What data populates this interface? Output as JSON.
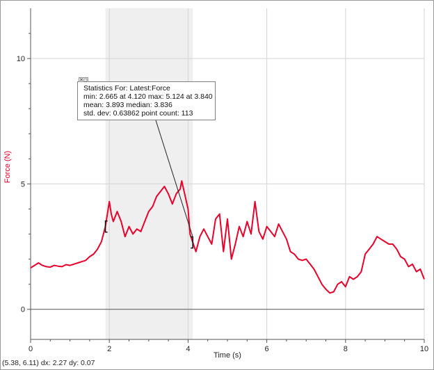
{
  "chart_data": {
    "type": "line",
    "xlabel": "Time (s)",
    "ylabel": "Force (N)",
    "xlim": [
      0,
      10
    ],
    "ylim": [
      -1.2,
      12
    ],
    "x_ticks": [
      0,
      2,
      4,
      6,
      8,
      10
    ],
    "y_ticks": [
      0,
      5,
      10
    ],
    "grid": true,
    "series_color": "#e8002a",
    "ylabel_color": "#e8002a",
    "selection": {
      "x_start": 1.9,
      "x_end": 4.12,
      "color": "#efefef"
    },
    "series": [
      {
        "x": [
          0.0,
          0.1,
          0.2,
          0.3,
          0.4,
          0.5,
          0.6,
          0.7,
          0.8,
          0.9,
          1.0,
          1.1,
          1.2,
          1.3,
          1.4,
          1.5,
          1.6,
          1.7,
          1.8,
          1.85,
          1.9,
          1.95,
          2.0,
          2.05,
          2.1,
          2.2,
          2.3,
          2.4,
          2.5,
          2.6,
          2.7,
          2.8,
          2.9,
          3.0,
          3.1,
          3.2,
          3.3,
          3.4,
          3.5,
          3.6,
          3.7,
          3.8,
          3.84,
          3.9,
          4.0,
          4.05,
          4.12,
          4.2,
          4.3,
          4.4,
          4.5,
          4.6,
          4.7,
          4.8,
          4.9,
          5.0,
          5.1,
          5.2,
          5.3,
          5.4,
          5.5,
          5.6,
          5.7,
          5.8,
          5.9,
          6.0,
          6.1,
          6.2,
          6.3,
          6.4,
          6.5,
          6.6,
          6.7,
          6.8,
          6.9,
          7.0,
          7.1,
          7.2,
          7.3,
          7.4,
          7.5,
          7.6,
          7.7,
          7.8,
          7.9,
          8.0,
          8.1,
          8.2,
          8.3,
          8.4,
          8.5,
          8.6,
          8.7,
          8.8,
          8.9,
          9.0,
          9.1,
          9.2,
          9.3,
          9.4,
          9.5,
          9.6,
          9.7,
          9.8,
          9.9,
          10.0
        ],
        "values": [
          1.65,
          1.75,
          1.85,
          1.75,
          1.7,
          1.68,
          1.75,
          1.72,
          1.7,
          1.78,
          1.75,
          1.8,
          1.85,
          1.9,
          1.95,
          2.1,
          2.2,
          2.4,
          2.7,
          3.0,
          3.3,
          3.8,
          4.3,
          3.8,
          3.5,
          3.9,
          3.5,
          2.9,
          3.3,
          3.0,
          3.2,
          3.1,
          3.5,
          3.9,
          4.1,
          4.5,
          4.7,
          4.9,
          4.6,
          4.2,
          4.6,
          4.8,
          5.12,
          4.7,
          4.0,
          3.0,
          2.665,
          2.3,
          2.9,
          3.2,
          2.9,
          2.6,
          3.6,
          3.8,
          2.3,
          3.6,
          2.0,
          2.6,
          3.3,
          2.9,
          3.5,
          3.0,
          4.3,
          3.1,
          2.8,
          3.3,
          3.1,
          2.9,
          3.4,
          3.1,
          2.8,
          2.3,
          2.2,
          2.0,
          1.95,
          2.0,
          1.8,
          1.6,
          1.3,
          1.0,
          0.8,
          0.65,
          0.7,
          1.0,
          1.1,
          0.9,
          1.3,
          1.2,
          1.3,
          1.5,
          2.2,
          2.4,
          2.6,
          2.9,
          2.8,
          2.7,
          2.6,
          2.6,
          2.4,
          2.1,
          2.0,
          1.7,
          1.8,
          1.5,
          1.6,
          1.2
        ]
      }
    ]
  },
  "stats_box": {
    "close_label": "✕◻",
    "title": "Statistics For: Latest:Force",
    "line1": "min: 2.665 at 4.120 max: 5.124 at 3.840",
    "line2": "mean: 3.893 median: 3.836",
    "line3": "std. dev: 0.63862 point count: 113",
    "anchor": {
      "x": 4.12,
      "y": 2.665
    }
  },
  "readout": "(5.38, 6.11) dx: 2.27 dy: 0.07"
}
